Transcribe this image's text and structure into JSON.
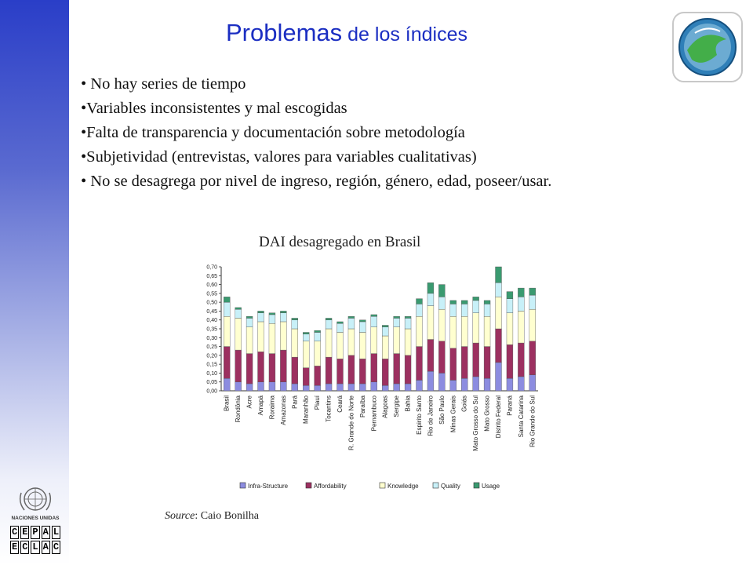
{
  "slide": {
    "title_big": "Problemas",
    "title_small": " de los índices",
    "bullets": [
      "• No hay series de tiempo",
      "•Variables inconsistentes y mal escogidas",
      "•Falta de transparencia y documentación sobre metodología",
      "•Subjetividad (entrevistas, valores para variables cualitativas)",
      "• No se desagrega por nivel de ingreso, región, género, edad, poseer/usar."
    ],
    "chart_heading": "DAI desagregado en Brasil",
    "source_label": "Source",
    "source_text": ": Caio Bonilha",
    "un_logo_text": "NACIONES UNIDAS",
    "cepal_row1": [
      "C",
      "E",
      "P",
      "A",
      "L"
    ],
    "cepal_row2": [
      "E",
      "C",
      "L",
      "A",
      "C"
    ]
  },
  "colors": {
    "infra": "#8c8ce0",
    "afford": "#9c3060",
    "knowledge": "#ffffd0",
    "quality": "#c8f0f8",
    "usage": "#3a9a70",
    "title": "#1b2ec2"
  },
  "chart_data": {
    "type": "bar",
    "stacked": true,
    "title": "DAI desagregado en Brasil",
    "ylim": [
      0,
      0.7
    ],
    "yticks": [
      "0,00",
      "0,05",
      "0,10",
      "0,15",
      "0,20",
      "0,25",
      "0,30",
      "0,35",
      "0,40",
      "0,45",
      "0,50",
      "0,55",
      "0,60",
      "0,65",
      "0,70"
    ],
    "categories": [
      "Brasil",
      "Rondônia",
      "Acre",
      "Amapá",
      "Roraima",
      "Amazonas",
      "Pará",
      "Maranhão",
      "Piauí",
      "Tocantins",
      "Ceará",
      "R. Grande do Norte",
      "Paraíba",
      "Pernambuco",
      "Alagoas",
      "Sergipe",
      "Bahia",
      "Espirito Santo",
      "Rio de Janeiro",
      "São Paulo",
      "Minas Gerais",
      "Goiás",
      "Mato Grosso do Sul",
      "Mato Grosso",
      "Distrito Federal",
      "Paraná",
      "Santa Catarina",
      "Rio Grande do Sul"
    ],
    "series": [
      {
        "name": "Infra-Structure",
        "values": [
          0.07,
          0.05,
          0.04,
          0.05,
          0.05,
          0.05,
          0.04,
          0.03,
          0.03,
          0.04,
          0.04,
          0.04,
          0.04,
          0.05,
          0.03,
          0.04,
          0.04,
          0.06,
          0.11,
          0.1,
          0.06,
          0.07,
          0.08,
          0.07,
          0.16,
          0.07,
          0.08,
          0.09
        ]
      },
      {
        "name": "Affordability",
        "values": [
          0.18,
          0.18,
          0.17,
          0.17,
          0.16,
          0.18,
          0.15,
          0.1,
          0.11,
          0.15,
          0.14,
          0.16,
          0.14,
          0.16,
          0.15,
          0.17,
          0.16,
          0.19,
          0.18,
          0.18,
          0.18,
          0.18,
          0.19,
          0.18,
          0.19,
          0.19,
          0.19,
          0.19
        ]
      },
      {
        "name": "Knowledge",
        "values": [
          0.17,
          0.18,
          0.15,
          0.17,
          0.17,
          0.16,
          0.16,
          0.15,
          0.14,
          0.16,
          0.15,
          0.15,
          0.15,
          0.15,
          0.13,
          0.15,
          0.15,
          0.17,
          0.19,
          0.18,
          0.18,
          0.17,
          0.17,
          0.17,
          0.18,
          0.18,
          0.18,
          0.18
        ]
      },
      {
        "name": "Quality",
        "values": [
          0.08,
          0.05,
          0.05,
          0.05,
          0.05,
          0.05,
          0.05,
          0.04,
          0.05,
          0.05,
          0.05,
          0.06,
          0.06,
          0.06,
          0.05,
          0.05,
          0.06,
          0.07,
          0.07,
          0.07,
          0.07,
          0.07,
          0.07,
          0.07,
          0.08,
          0.08,
          0.08,
          0.08
        ]
      },
      {
        "name": "Usage",
        "values": [
          0.03,
          0.01,
          0.01,
          0.01,
          0.01,
          0.01,
          0.01,
          0.01,
          0.01,
          0.01,
          0.01,
          0.01,
          0.01,
          0.01,
          0.01,
          0.01,
          0.01,
          0.03,
          0.06,
          0.07,
          0.02,
          0.02,
          0.02,
          0.02,
          0.09,
          0.04,
          0.05,
          0.04
        ]
      }
    ],
    "legend_position": "bottom"
  }
}
